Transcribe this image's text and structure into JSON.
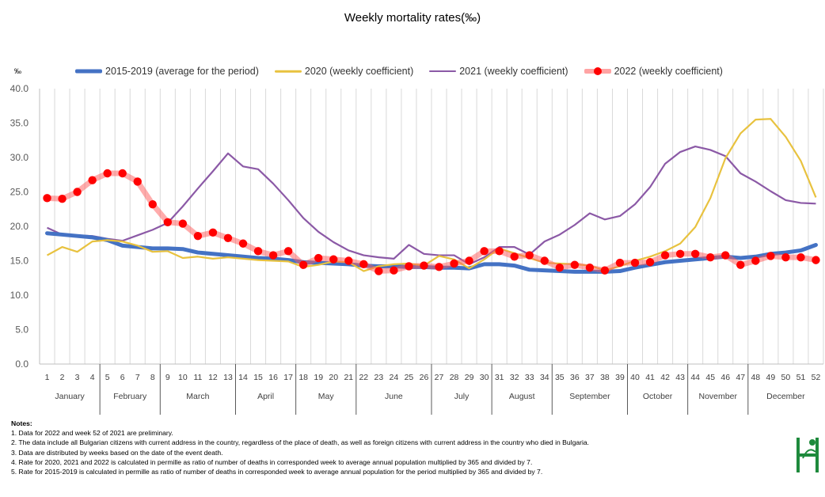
{
  "chart_data": {
    "type": "line",
    "title": "Weekly mortality rates(‰)",
    "ylabel": "‰",
    "xlabel": "",
    "ylim": [
      0,
      40
    ],
    "yticks": [
      "0.0",
      "5.0",
      "10.0",
      "15.0",
      "20.0",
      "25.0",
      "30.0",
      "35.0",
      "40.0"
    ],
    "grid": "vertical",
    "legend_position": "top",
    "x": [
      1,
      2,
      3,
      4,
      5,
      6,
      7,
      8,
      9,
      10,
      11,
      12,
      13,
      14,
      15,
      16,
      17,
      18,
      19,
      20,
      21,
      22,
      23,
      24,
      25,
      26,
      27,
      28,
      29,
      30,
      31,
      32,
      33,
      34,
      35,
      36,
      37,
      38,
      39,
      40,
      41,
      42,
      43,
      44,
      45,
      46,
      47,
      48,
      49,
      50,
      51,
      52
    ],
    "months": [
      {
        "name": "January",
        "from": 1,
        "to": 4
      },
      {
        "name": "February",
        "from": 5,
        "to": 8
      },
      {
        "name": "March",
        "from": 9,
        "to": 13
      },
      {
        "name": "April",
        "from": 14,
        "to": 17
      },
      {
        "name": "May",
        "from": 18,
        "to": 21
      },
      {
        "name": "June",
        "from": 22,
        "to": 26
      },
      {
        "name": "July",
        "from": 27,
        "to": 30
      },
      {
        "name": "August",
        "from": 31,
        "to": 34
      },
      {
        "name": "September",
        "from": 35,
        "to": 39
      },
      {
        "name": "October",
        "from": 40,
        "to": 43
      },
      {
        "name": "November",
        "from": 44,
        "to": 47
      },
      {
        "name": "December",
        "from": 48,
        "to": 52
      }
    ],
    "series": [
      {
        "name": "2015-2019 (average for the period)",
        "color": "#4472c4",
        "style": "thick",
        "values": [
          19.0,
          18.8,
          18.6,
          18.4,
          18.0,
          17.2,
          17.0,
          16.8,
          16.8,
          16.7,
          16.2,
          16.0,
          15.8,
          15.6,
          15.4,
          15.3,
          15.1,
          14.8,
          14.7,
          14.6,
          14.5,
          14.3,
          14.2,
          14.2,
          14.1,
          14.1,
          14.0,
          14.0,
          13.9,
          14.5,
          14.5,
          14.3,
          13.7,
          13.6,
          13.5,
          13.4,
          13.4,
          13.4,
          13.5,
          14.0,
          14.4,
          14.8,
          15.0,
          15.2,
          15.4,
          15.6,
          15.4,
          15.6,
          16.0,
          16.2,
          16.5,
          17.3
        ]
      },
      {
        "name": "2020 (weekly coefficient)",
        "color": "#e8c23f",
        "style": "line",
        "values": [
          15.8,
          17.0,
          16.3,
          17.8,
          18.0,
          17.8,
          17.2,
          16.3,
          16.4,
          15.4,
          15.6,
          15.3,
          15.5,
          15.3,
          15.1,
          15.0,
          14.9,
          14.1,
          14.4,
          14.9,
          14.8,
          13.5,
          14.2,
          14.5,
          14.6,
          14.3,
          15.7,
          15.2,
          13.9,
          15.2,
          16.8,
          16.1,
          15.4,
          14.7,
          14.6,
          14.5,
          14.3,
          13.6,
          14.2,
          15.0,
          15.6,
          16.4,
          17.5,
          19.9,
          24.1,
          29.9,
          33.5,
          35.5,
          35.6,
          33.0,
          29.5,
          24.2
        ]
      },
      {
        "name": "2021 (weekly coefficient)",
        "color": "#8b59a6",
        "style": "line",
        "values": [
          19.8,
          18.8,
          18.7,
          18.6,
          18.2,
          17.9,
          18.7,
          19.5,
          20.5,
          22.9,
          25.5,
          28.0,
          30.6,
          28.7,
          28.3,
          26.2,
          23.8,
          21.2,
          19.2,
          17.7,
          16.5,
          15.8,
          15.5,
          15.3,
          17.3,
          16.0,
          15.8,
          15.8,
          14.5,
          15.5,
          17.0,
          17.0,
          15.9,
          17.8,
          18.8,
          20.2,
          21.9,
          21.0,
          21.5,
          23.2,
          25.7,
          29.1,
          30.8,
          31.6,
          31.1,
          30.2,
          27.7,
          26.5,
          25.1,
          23.8,
          23.4,
          23.3
        ]
      },
      {
        "name": "2022 (weekly coefficient)",
        "color": "#ff0000",
        "style": "markers",
        "values": [
          24.1,
          24.0,
          25.0,
          26.7,
          27.7,
          27.7,
          26.5,
          23.2,
          20.6,
          20.4,
          18.6,
          19.1,
          18.3,
          17.5,
          16.4,
          15.8,
          16.4,
          14.4,
          15.4,
          15.2,
          15.0,
          14.5,
          13.5,
          13.6,
          14.2,
          14.3,
          14.1,
          14.6,
          15.0,
          16.4,
          16.4,
          15.6,
          15.8,
          15.0,
          14.0,
          14.4,
          14.0,
          13.6,
          14.7,
          14.7,
          14.8,
          15.8,
          16.0,
          16.0,
          15.5,
          15.8,
          14.4,
          15.0,
          15.7,
          15.5,
          15.5,
          15.1
        ]
      }
    ]
  },
  "notes": {
    "heading": "Notes:",
    "items": [
      "1. Data for 2022 and week 52 of 2021 are preliminary.",
      "2. The data include all Bulgarian citizens with current address in the country, regardless of the place of death, as well as foreign citizens with current address in the country who died in Bulgaria.",
      "3. Data are distributed by weeks based on the date of the event death.",
      "4. Rate for 2020, 2021 and 2022 is calculated in permille as ratio of number of deaths in corresponded week to average annual population multiplied by 365 and divided by 7.",
      "5. Rate for 2015-2019 is calculated in permille as ratio of number of deaths in corresponded week to average annual population for the period multiplied by 365 and divided by 7."
    ]
  },
  "logo": {
    "name": "nsi-logo-icon",
    "color": "#1e8a3c"
  }
}
